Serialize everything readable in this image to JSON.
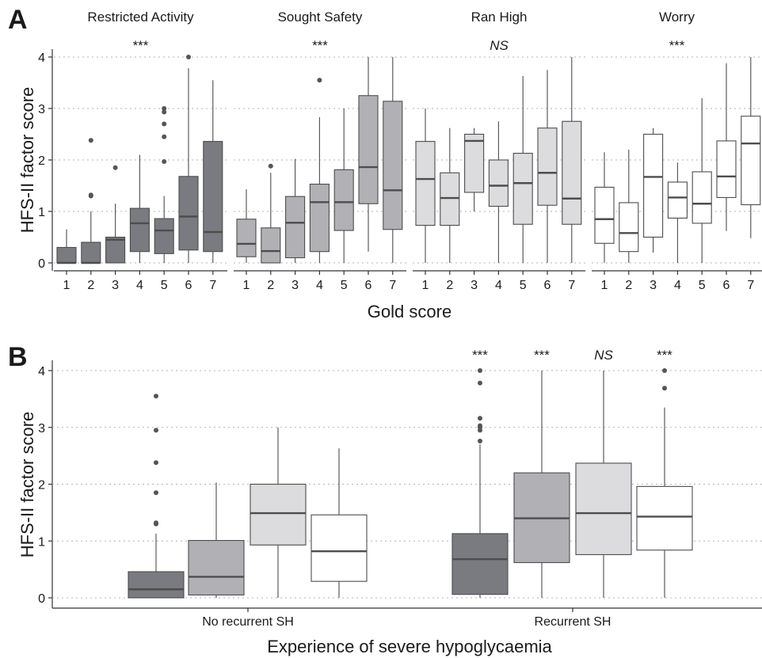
{
  "chart_data": [
    {
      "panel": "A",
      "type": "box",
      "ylabel": "HFS-II factor score",
      "xlabel": "Gold score",
      "ylim": [
        0,
        4
      ],
      "yticks": [
        0,
        1,
        2,
        3,
        4
      ],
      "grid": "horizontal dotted",
      "categories": [
        "1",
        "2",
        "3",
        "4",
        "5",
        "6",
        "7"
      ],
      "facets": [
        {
          "name": "Restricted Activity",
          "significance": "***",
          "color": "#7a7b80",
          "boxes": [
            {
              "lw": 0,
              "q1": 0,
              "median": 0,
              "q3": 0.3,
              "uw": 0.65,
              "outliers": []
            },
            {
              "lw": 0,
              "q1": 0,
              "median": 0,
              "q3": 0.4,
              "uw": 1.0,
              "outliers": [
                1.3,
                1.32,
                2.38
              ]
            },
            {
              "lw": 0,
              "q1": 0,
              "median": 0.45,
              "q3": 0.5,
              "uw": 1.15,
              "outliers": [
                1.85
              ]
            },
            {
              "lw": 0,
              "q1": 0.22,
              "median": 0.77,
              "q3": 1.06,
              "uw": 2.1,
              "outliers": []
            },
            {
              "lw": 0,
              "q1": 0.18,
              "median": 0.63,
              "q3": 0.86,
              "uw": 1.3,
              "outliers": [
                1.97,
                2.45,
                2.7,
                2.93,
                3.0
              ]
            },
            {
              "lw": 0,
              "q1": 0.25,
              "median": 0.9,
              "q3": 1.68,
              "uw": 3.78,
              "outliers": [
                4.0
              ]
            },
            {
              "lw": 0,
              "q1": 0.22,
              "median": 0.6,
              "q3": 2.36,
              "uw": 3.55,
              "outliers": []
            }
          ]
        },
        {
          "name": "Sought Safety",
          "significance": "***",
          "color": "#b1b1b5",
          "boxes": [
            {
              "lw": 0,
              "q1": 0.12,
              "median": 0.37,
              "q3": 0.85,
              "uw": 1.43,
              "outliers": []
            },
            {
              "lw": 0,
              "q1": 0,
              "median": 0.23,
              "q3": 0.68,
              "uw": 1.75,
              "outliers": [
                1.88
              ]
            },
            {
              "lw": 0,
              "q1": 0.1,
              "median": 0.78,
              "q3": 1.29,
              "uw": 2.02,
              "outliers": []
            },
            {
              "lw": 0,
              "q1": 0.22,
              "median": 1.18,
              "q3": 1.53,
              "uw": 2.83,
              "outliers": [
                3.55
              ]
            },
            {
              "lw": 0,
              "q1": 0.63,
              "median": 1.18,
              "q3": 1.81,
              "uw": 3.0,
              "outliers": []
            },
            {
              "lw": 0.22,
              "q1": 1.15,
              "median": 1.86,
              "q3": 3.25,
              "uw": 4.0,
              "outliers": []
            },
            {
              "lw": 0,
              "q1": 0.65,
              "median": 1.41,
              "q3": 3.14,
              "uw": 4.0,
              "outliers": []
            }
          ]
        },
        {
          "name": "Ran High",
          "significance": "NS",
          "color": "#dcdcdf",
          "boxes": [
            {
              "lw": 0,
              "q1": 0.73,
              "median": 1.63,
              "q3": 2.36,
              "uw": 3.0,
              "outliers": []
            },
            {
              "lw": 0,
              "q1": 0.73,
              "median": 1.26,
              "q3": 1.75,
              "uw": 2.62,
              "outliers": []
            },
            {
              "lw": 1.0,
              "q1": 1.37,
              "median": 2.37,
              "q3": 2.5,
              "uw": 2.62,
              "outliers": []
            },
            {
              "lw": 0,
              "q1": 1.1,
              "median": 1.5,
              "q3": 2.0,
              "uw": 2.75,
              "outliers": []
            },
            {
              "lw": 0,
              "q1": 0.75,
              "median": 1.55,
              "q3": 2.13,
              "uw": 3.63,
              "outliers": []
            },
            {
              "lw": 0,
              "q1": 1.12,
              "median": 1.75,
              "q3": 2.62,
              "uw": 3.75,
              "outliers": []
            },
            {
              "lw": 0,
              "q1": 0.75,
              "median": 1.25,
              "q3": 2.75,
              "uw": 4.0,
              "outliers": []
            }
          ]
        },
        {
          "name": "Worry",
          "significance": "***",
          "color": "#ffffff",
          "boxes": [
            {
              "lw": 0,
              "q1": 0.38,
              "median": 0.85,
              "q3": 1.47,
              "uw": 2.15,
              "outliers": []
            },
            {
              "lw": 0,
              "q1": 0.22,
              "median": 0.58,
              "q3": 1.17,
              "uw": 2.2,
              "outliers": []
            },
            {
              "lw": 0.2,
              "q1": 0.5,
              "median": 1.67,
              "q3": 2.5,
              "uw": 2.62,
              "outliers": []
            },
            {
              "lw": 0,
              "q1": 0.87,
              "median": 1.27,
              "q3": 1.57,
              "uw": 1.95,
              "outliers": []
            },
            {
              "lw": 0,
              "q1": 0.77,
              "median": 1.15,
              "q3": 1.77,
              "uw": 3.2,
              "outliers": []
            },
            {
              "lw": 0.62,
              "q1": 1.27,
              "median": 1.68,
              "q3": 2.37,
              "uw": 3.88,
              "outliers": []
            },
            {
              "lw": 0.48,
              "q1": 1.13,
              "median": 2.32,
              "q3": 2.85,
              "uw": 4.0,
              "outliers": []
            }
          ]
        }
      ]
    },
    {
      "panel": "B",
      "type": "box",
      "ylabel": "HFS-II factor score",
      "xlabel": "Experience of severe hypoglycaemia",
      "ylim": [
        0,
        4
      ],
      "yticks": [
        0,
        1,
        2,
        3,
        4
      ],
      "grid": "horizontal dotted",
      "categories": [
        "No recurrent SH",
        "Recurrent SH"
      ],
      "series_colors": [
        "#7a7b80",
        "#b1b1b5",
        "#dcdcdf",
        "#ffffff"
      ],
      "groups": [
        {
          "name": "No recurrent SH",
          "significance": [
            "",
            "",
            "",
            ""
          ],
          "boxes": [
            {
              "lw": 0,
              "q1": 0,
              "median": 0.15,
              "q3": 0.46,
              "uw": 1.13,
              "outliers": [
                1.3,
                1.32,
                1.85,
                2.38,
                2.95,
                3.55
              ]
            },
            {
              "lw": 0,
              "q1": 0.05,
              "median": 0.37,
              "q3": 1.01,
              "uw": 2.03,
              "outliers": []
            },
            {
              "lw": 0,
              "q1": 0.93,
              "median": 1.49,
              "q3": 2.0,
              "uw": 3.0,
              "outliers": []
            },
            {
              "lw": 0,
              "q1": 0.29,
              "median": 0.82,
              "q3": 1.46,
              "uw": 2.63,
              "outliers": []
            }
          ]
        },
        {
          "name": "Recurrent SH",
          "significance": [
            "***",
            "***",
            "NS",
            "***"
          ],
          "boxes": [
            {
              "lw": 0,
              "q1": 0.06,
              "median": 0.68,
              "q3": 1.13,
              "uw": 2.7,
              "outliers": [
                2.76,
                2.95,
                3.0,
                3.03,
                3.16,
                3.78,
                4.0
              ]
            },
            {
              "lw": 0,
              "q1": 0.62,
              "median": 1.4,
              "q3": 2.2,
              "uw": 4.0,
              "outliers": []
            },
            {
              "lw": 0,
              "q1": 0.76,
              "median": 1.49,
              "q3": 2.37,
              "uw": 4.0,
              "outliers": []
            },
            {
              "lw": 0,
              "q1": 0.84,
              "median": 1.43,
              "q3": 1.96,
              "uw": 3.35,
              "outliers": [
                3.69,
                4.0
              ]
            }
          ]
        }
      ]
    }
  ]
}
